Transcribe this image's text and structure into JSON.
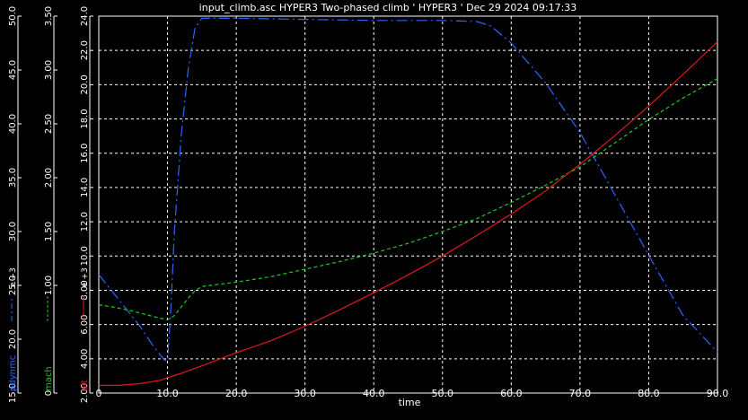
{
  "chart_data": {
    "type": "line",
    "title": "input_climb.asc HYPER3 Two-phased climb  ' HYPER3 ' Dec 29 2024 09:17:33",
    "xlabel": "time",
    "xlim": [
      0,
      90
    ],
    "xticks": [
      "0",
      "10.0",
      "20.0",
      "30.0",
      "40.0",
      "50.0",
      "60.0",
      "70.0",
      "80.0",
      "90.0"
    ],
    "grid": true,
    "background_color": "#000000",
    "axes": [
      {
        "id": "pdynmc",
        "label": "pdynmc",
        "multiplier": "e +3",
        "color": "#2d64ff",
        "ylim": [
          15,
          50
        ],
        "ticks": [
          "15.0",
          "20.0",
          "25.0",
          "30.0",
          "35.0",
          "40.0",
          "45.0",
          "50.0"
        ]
      },
      {
        "id": "mach",
        "label": "mach",
        "multiplier": "",
        "color": "#1ec81e",
        "ylim": [
          0,
          3.5
        ],
        "ticks": [
          "0",
          "1.00",
          "1.50",
          "2.00",
          "2.50",
          "3.00",
          "3.50"
        ]
      },
      {
        "id": "alt",
        "label": "alt",
        "multiplier": "e +3",
        "color": "#e01a1a",
        "ylim": [
          2,
          24
        ],
        "ticks": [
          "2.00",
          "4.00",
          "6.00",
          "8.00",
          "10.0",
          "12.0",
          "14.0",
          "16.0",
          "18.0",
          "20.0",
          "22.0",
          "24.0"
        ]
      }
    ],
    "series": [
      {
        "name": "pdynmc",
        "axis": "pdynmc",
        "dash": "12 4 2 4",
        "x": [
          0,
          3,
          6,
          8,
          9.5,
          10,
          10.5,
          11,
          12,
          13,
          14,
          15,
          20,
          30,
          40,
          50,
          55,
          57,
          60,
          65,
          70,
          75,
          80,
          85,
          90
        ],
        "y": [
          26,
          23.6,
          21.2,
          19.3,
          18.1,
          18,
          23,
          30,
          39,
          45,
          48.9,
          49.8,
          49.8,
          49.7,
          49.6,
          49.6,
          49.5,
          49.1,
          47.5,
          43.8,
          39.2,
          33.5,
          27.8,
          22.2,
          18.8
        ]
      },
      {
        "name": "mach",
        "axis": "mach",
        "dash": "4 3",
        "x": [
          0,
          2,
          5,
          8,
          10,
          11,
          12,
          13,
          14,
          15,
          20,
          25,
          30,
          35,
          40,
          45,
          50,
          55,
          60,
          65,
          70,
          75,
          80,
          85,
          90
        ],
        "y": [
          0.82,
          0.8,
          0.76,
          0.71,
          0.68,
          0.72,
          0.8,
          0.88,
          0.95,
          0.99,
          1.03,
          1.08,
          1.15,
          1.22,
          1.3,
          1.39,
          1.5,
          1.62,
          1.77,
          1.93,
          2.1,
          2.32,
          2.54,
          2.74,
          2.92
        ]
      },
      {
        "name": "alt",
        "axis": "alt",
        "dash": "",
        "x": [
          0,
          3,
          6,
          9,
          10,
          12,
          15,
          20,
          25,
          30,
          35,
          40,
          45,
          50,
          55,
          60,
          65,
          70,
          75,
          80,
          85,
          90
        ],
        "y": [
          2.45,
          2.45,
          2.55,
          2.75,
          2.9,
          3.15,
          3.6,
          4.35,
          5.05,
          5.9,
          6.85,
          7.85,
          8.9,
          10.0,
          11.2,
          12.45,
          13.8,
          15.35,
          17.0,
          18.75,
          20.6,
          22.5
        ]
      }
    ]
  }
}
